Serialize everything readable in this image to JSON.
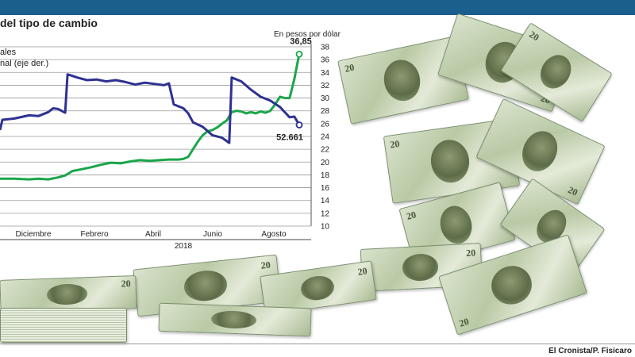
{
  "header": {
    "title": "del tipo de cambio",
    "legend": [
      "ales",
      "nal (eje der.)"
    ],
    "units": "En pesos por dólar",
    "credit": "El Cronista/P. Fisicaro"
  },
  "bills": {
    "denomination": "20"
  },
  "colors": {
    "bar": "#1b5f8d",
    "series_blue": "#2e3192",
    "series_green": "#1aa64a"
  },
  "chart_data": {
    "type": "line",
    "x_labels": [
      "Diciembre",
      "Febrero",
      "Abril",
      "Junio",
      "Agosto"
    ],
    "year_label": "2018",
    "right_axis": {
      "ylim": [
        10,
        38
      ],
      "ticks": [
        10,
        12,
        14,
        16,
        18,
        20,
        22,
        24,
        26,
        28,
        30,
        32,
        34,
        36,
        38
      ]
    },
    "series": [
      {
        "color": "#1aa64a",
        "end_label": "36,85",
        "points": [
          [
            0,
            17.4
          ],
          [
            0.3,
            17.4
          ],
          [
            0.6,
            17.3
          ],
          [
            0.8,
            17.4
          ],
          [
            1.0,
            17.3
          ],
          [
            1.2,
            17.6
          ],
          [
            1.35,
            17.9
          ],
          [
            1.5,
            18.6
          ],
          [
            1.7,
            18.9
          ],
          [
            1.9,
            19.2
          ],
          [
            2.1,
            19.6
          ],
          [
            2.3,
            19.9
          ],
          [
            2.5,
            19.8
          ],
          [
            2.7,
            20.1
          ],
          [
            2.9,
            20.3
          ],
          [
            3.1,
            20.2
          ],
          [
            3.3,
            20.3
          ],
          [
            3.5,
            20.4
          ],
          [
            3.7,
            20.4
          ],
          [
            3.8,
            20.5
          ],
          [
            3.9,
            20.8
          ],
          [
            4.0,
            22.0
          ],
          [
            4.1,
            23.2
          ],
          [
            4.2,
            24.2
          ],
          [
            4.3,
            24.8
          ],
          [
            4.4,
            25.0
          ],
          [
            4.5,
            25.4
          ],
          [
            4.6,
            26.0
          ],
          [
            4.7,
            26.5
          ],
          [
            4.8,
            27.8
          ],
          [
            4.9,
            28.0
          ],
          [
            5.0,
            27.9
          ],
          [
            5.1,
            27.6
          ],
          [
            5.2,
            27.8
          ],
          [
            5.3,
            27.6
          ],
          [
            5.4,
            27.9
          ],
          [
            5.5,
            27.7
          ],
          [
            5.6,
            28.0
          ],
          [
            5.7,
            29.0
          ],
          [
            5.8,
            30.2
          ],
          [
            5.9,
            30.0
          ],
          [
            6.0,
            30.0
          ],
          [
            6.05,
            31.5
          ],
          [
            6.1,
            33.0
          ],
          [
            6.15,
            35.0
          ],
          [
            6.2,
            36.85
          ]
        ]
      },
      {
        "color": "#2e3192",
        "end_label": "52.661",
        "points": [
          [
            0,
            25.0
          ],
          [
            0.05,
            26.6
          ],
          [
            0.3,
            26.8
          ],
          [
            0.6,
            27.3
          ],
          [
            0.8,
            27.2
          ],
          [
            1.0,
            27.8
          ],
          [
            1.1,
            28.4
          ],
          [
            1.2,
            28.3
          ],
          [
            1.35,
            27.7
          ],
          [
            1.4,
            33.7
          ],
          [
            1.6,
            33.2
          ],
          [
            1.8,
            32.8
          ],
          [
            2.0,
            32.9
          ],
          [
            2.2,
            32.6
          ],
          [
            2.4,
            32.8
          ],
          [
            2.6,
            32.5
          ],
          [
            2.8,
            32.1
          ],
          [
            3.0,
            32.4
          ],
          [
            3.2,
            32.2
          ],
          [
            3.4,
            32.0
          ],
          [
            3.5,
            32.3
          ],
          [
            3.6,
            29.0
          ],
          [
            3.8,
            28.4
          ],
          [
            3.9,
            27.6
          ],
          [
            4.0,
            26.2
          ],
          [
            4.2,
            25.5
          ],
          [
            4.4,
            24.2
          ],
          [
            4.6,
            23.8
          ],
          [
            4.75,
            23.0
          ],
          [
            4.8,
            33.2
          ],
          [
            5.0,
            32.6
          ],
          [
            5.2,
            31.3
          ],
          [
            5.4,
            30.2
          ],
          [
            5.6,
            29.6
          ],
          [
            5.8,
            28.6
          ],
          [
            6.0,
            27.0
          ],
          [
            6.1,
            27.1
          ],
          [
            6.2,
            25.8
          ]
        ]
      }
    ]
  }
}
